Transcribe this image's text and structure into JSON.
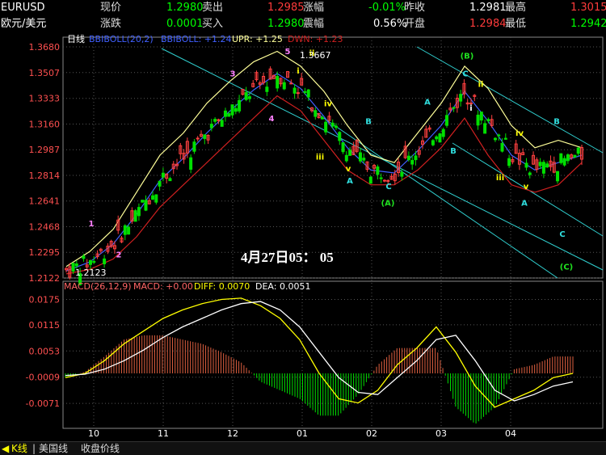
{
  "quote": {
    "symbol": "EURUSD",
    "name": "欧元/美元",
    "row1": [
      {
        "label": "现价",
        "value": "1.2980",
        "color": "#00ff00"
      },
      {
        "label": "卖出",
        "value": "1.2985",
        "color": "#ff3b3b"
      },
      {
        "label": "涨幅",
        "value": "-0.01%",
        "color": "#00ff00"
      },
      {
        "label": "昨收",
        "value": "1.2981",
        "color": "#ffffff"
      },
      {
        "label": "最高",
        "value": "1.3015",
        "color": "#ff3b3b"
      }
    ],
    "row2": [
      {
        "label": "涨跌",
        "value": "0.0001",
        "color": "#00ff00"
      },
      {
        "label": "买入",
        "value": "1.2980",
        "color": "#00ff00"
      },
      {
        "label": "震幅",
        "value": "0.56%",
        "color": "#ffffff"
      },
      {
        "label": "开盘",
        "value": "1.2984",
        "color": "#ff3b3b"
      },
      {
        "label": "最低",
        "value": "1.2942",
        "color": "#00ff00"
      }
    ]
  },
  "main_legend": {
    "period": "日线",
    "boll": "BBIBOLL(20,2)",
    "bbiboll": "BBIBOLL: +1.24",
    "upr": "UPR: +1.25",
    "dwn": "DWN: +1.23"
  },
  "macd_legend": {
    "macd": "MACD(26,12,9)",
    "macd_val": "MACD: +0.00",
    "diff": "DIFF: 0.0070",
    "dea": "DEA: 0.0051"
  },
  "annotations": {
    "timestamp": "4月27日05：  05",
    "high_label": "1.3667",
    "low_label": "1.2123"
  },
  "tabs": [
    "K线",
    "美国线",
    "收盘价线"
  ],
  "colors": {
    "bull": "#ff4040",
    "bear": "#00e000",
    "grid": "#555555",
    "channel": "#30d0d0",
    "upr": "#ffff99",
    "dwn": "#d02020",
    "mid": "#4060ff",
    "diff": "#ffffff",
    "dea": "#ffff00",
    "wave_white": "#ffffff",
    "wave_pink": "#ff80ff",
    "wave_yellow": "#ffff00",
    "wave_cyan": "#30e0e0",
    "wave_green": "#20e020"
  },
  "chart_data": [
    {
      "type": "candlestick",
      "title": "EURUSD 日线",
      "yticks": [
        "1.3680",
        "1.3507",
        "1.3333",
        "1.3160",
        "1.2987",
        "1.2814",
        "1.2641",
        "1.2468",
        "1.2295",
        "1.2122"
      ],
      "xticks": [
        "10",
        "11",
        "12",
        "01",
        "02",
        "03",
        "04"
      ],
      "ylim": [
        1.2122,
        1.368
      ],
      "grid": true,
      "series": [
        {
          "name": "UPR",
          "values": [
            1.22,
            1.23,
            1.245,
            1.27,
            1.295,
            1.31,
            1.33,
            1.345,
            1.358,
            1.365,
            1.355,
            1.338,
            1.315,
            1.295,
            1.29,
            1.31,
            1.33,
            1.355,
            1.34,
            1.315,
            1.3,
            1.305,
            1.3
          ]
        },
        {
          "name": "DWN",
          "values": [
            1.215,
            1.218,
            1.225,
            1.24,
            1.26,
            1.275,
            1.29,
            1.305,
            1.32,
            1.335,
            1.325,
            1.305,
            1.285,
            1.275,
            1.275,
            1.285,
            1.3,
            1.32,
            1.295,
            1.275,
            1.27,
            1.275,
            1.29
          ]
        },
        {
          "name": "BBIBOLL",
          "values": [
            1.217,
            1.223,
            1.235,
            1.255,
            1.278,
            1.293,
            1.31,
            1.325,
            1.339,
            1.35,
            1.34,
            1.321,
            1.3,
            1.285,
            1.283,
            1.298,
            1.315,
            1.338,
            1.318,
            1.295,
            1.285,
            1.29,
            1.295
          ]
        }
      ],
      "waves": [
        {
          "label": "1",
          "value": 1.247
        },
        {
          "label": "2",
          "value": 1.226
        },
        {
          "label": "3",
          "value": 1.348
        },
        {
          "label": "4",
          "value": 1.318
        },
        {
          "label": "5",
          "value": 1.363
        },
        {
          "label": "i",
          "value": 1.35
        },
        {
          "label": "ii",
          "value": 1.362
        },
        {
          "label": "iii",
          "value": 1.292
        },
        {
          "label": "iv",
          "value": 1.328
        },
        {
          "label": "v",
          "value": 1.284
        },
        {
          "label": "A",
          "value": 1.276
        },
        {
          "label": "B",
          "value": 1.316
        },
        {
          "label": "C",
          "value": 1.272
        },
        {
          "label": "(A)",
          "value": 1.261
        },
        {
          "label": "A",
          "value": 1.329
        },
        {
          "label": "B",
          "value": 1.296
        },
        {
          "label": "C",
          "value": 1.348
        },
        {
          "label": "(B)",
          "value": 1.36
        },
        {
          "label": "ii",
          "value": 1.341
        },
        {
          "label": "i",
          "value": 1.325
        },
        {
          "label": "iii",
          "value": 1.278
        },
        {
          "label": "iv",
          "value": 1.308
        },
        {
          "label": "v",
          "value": 1.272
        },
        {
          "label": "A",
          "value": 1.261
        },
        {
          "label": "B",
          "value": 1.316
        },
        {
          "label": "C",
          "value": 1.24
        },
        {
          "label": "(C)",
          "value": 1.218
        }
      ]
    },
    {
      "type": "bar",
      "title": "MACD(26,12,9)",
      "yticks": [
        "0.0175",
        "0.0115",
        "0.0053",
        "-0.0009",
        "-0.0071"
      ],
      "ylim": [
        -0.013,
        0.0195
      ],
      "series": [
        {
          "name": "DIFF",
          "values": [
            -0.001,
            0.0,
            0.003,
            0.007,
            0.01,
            0.013,
            0.015,
            0.0165,
            0.0175,
            0.0178,
            0.016,
            0.013,
            0.008,
            0.0,
            -0.006,
            -0.007,
            -0.004,
            0.002,
            0.006,
            0.011,
            0.005,
            -0.003,
            -0.008,
            -0.006,
            -0.004,
            -0.001,
            0.0
          ]
        },
        {
          "name": "DEA",
          "values": [
            -0.0005,
            -0.0002,
            0.001,
            0.003,
            0.0055,
            0.0085,
            0.011,
            0.013,
            0.015,
            0.0165,
            0.017,
            0.015,
            0.011,
            0.005,
            -0.001,
            -0.0045,
            -0.005,
            -0.001,
            0.003,
            0.008,
            0.009,
            0.003,
            -0.004,
            -0.0065,
            -0.005,
            -0.003,
            -0.002
          ]
        }
      ]
    }
  ]
}
